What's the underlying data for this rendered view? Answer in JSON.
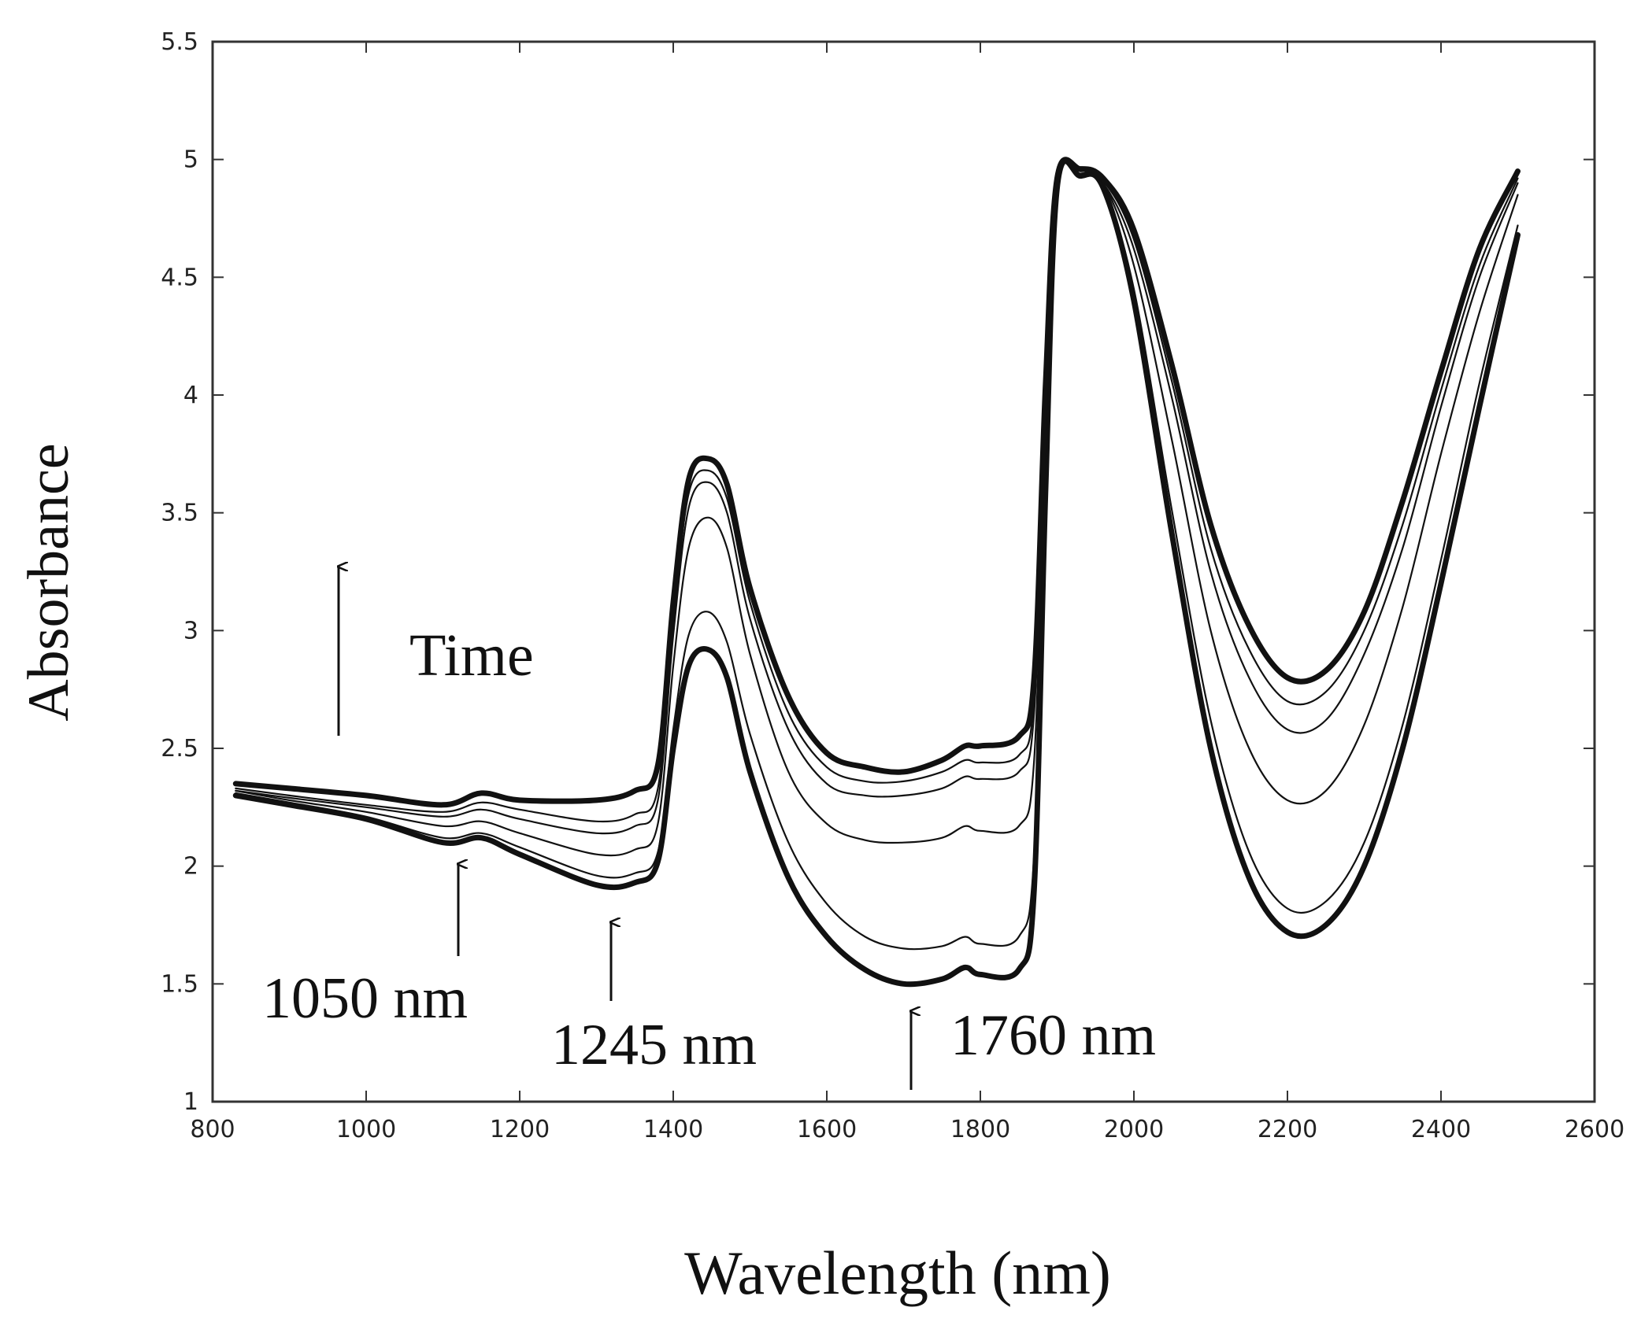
{
  "chart_data": {
    "type": "line",
    "title": "",
    "xlabel": "Wavelength (nm)",
    "ylabel": "Absorbance",
    "xlim": [
      800,
      2600
    ],
    "ylim": [
      1,
      5.5
    ],
    "xticks": [
      800,
      1000,
      1200,
      1400,
      1600,
      1800,
      2000,
      2200,
      2400,
      2600
    ],
    "xtick_labels": [
      "800",
      "1000",
      "1200",
      "1400",
      "1600",
      "1800",
      "2000",
      "2200",
      "2400",
      "2600"
    ],
    "yticks": [
      1,
      1.5,
      2,
      2.5,
      3,
      3.5,
      4,
      4.5,
      5,
      5.5
    ],
    "ytick_labels": [
      "1",
      "1.5",
      "2",
      "2.5",
      "3",
      "3.5",
      "4",
      "4.5",
      "5",
      "5.5"
    ],
    "grid": false,
    "x": [
      830,
      900,
      1000,
      1100,
      1150,
      1200,
      1300,
      1350,
      1380,
      1400,
      1420,
      1445,
      1470,
      1500,
      1550,
      1600,
      1650,
      1700,
      1750,
      1780,
      1800,
      1850,
      1870,
      1885,
      1900,
      1930,
      1960,
      2000,
      2050,
      2100,
      2150,
      2200,
      2250,
      2300,
      2350,
      2400,
      2450,
      2500
    ],
    "series": [
      {
        "name": "t0",
        "weight": "heavy",
        "values": [
          2.3,
          2.26,
          2.2,
          2.1,
          2.12,
          2.05,
          1.92,
          1.93,
          2.02,
          2.5,
          2.85,
          2.92,
          2.8,
          2.4,
          1.95,
          1.7,
          1.56,
          1.5,
          1.52,
          1.57,
          1.54,
          1.56,
          1.9,
          3.6,
          4.88,
          4.93,
          4.88,
          4.4,
          3.4,
          2.5,
          1.95,
          1.72,
          1.75,
          2.0,
          2.5,
          3.2,
          3.95,
          4.68
        ]
      },
      {
        "name": "t1",
        "weight": "light",
        "values": [
          2.31,
          2.27,
          2.21,
          2.12,
          2.14,
          2.08,
          1.96,
          1.97,
          2.06,
          2.58,
          2.98,
          3.08,
          2.95,
          2.56,
          2.1,
          1.84,
          1.7,
          1.65,
          1.66,
          1.7,
          1.67,
          1.7,
          2.05,
          3.7,
          4.88,
          4.93,
          4.88,
          4.45,
          3.5,
          2.62,
          2.06,
          1.82,
          1.85,
          2.1,
          2.6,
          3.3,
          4.05,
          4.72
        ]
      },
      {
        "name": "t2",
        "weight": "light",
        "values": [
          2.32,
          2.28,
          2.23,
          2.17,
          2.19,
          2.14,
          2.05,
          2.07,
          2.18,
          2.85,
          3.35,
          3.48,
          3.35,
          2.9,
          2.4,
          2.18,
          2.11,
          2.1,
          2.12,
          2.17,
          2.15,
          2.17,
          2.45,
          3.85,
          4.89,
          4.94,
          4.9,
          4.55,
          3.8,
          3.0,
          2.5,
          2.28,
          2.32,
          2.6,
          3.1,
          3.75,
          4.35,
          4.85
        ]
      },
      {
        "name": "t3",
        "weight": "light",
        "values": [
          2.32,
          2.29,
          2.25,
          2.21,
          2.24,
          2.2,
          2.14,
          2.17,
          2.28,
          2.98,
          3.52,
          3.63,
          3.5,
          3.05,
          2.58,
          2.35,
          2.3,
          2.3,
          2.33,
          2.38,
          2.37,
          2.4,
          2.65,
          3.95,
          4.9,
          4.94,
          4.9,
          4.62,
          3.98,
          3.25,
          2.8,
          2.58,
          2.62,
          2.9,
          3.35,
          3.95,
          4.5,
          4.9
        ]
      },
      {
        "name": "t4",
        "weight": "light",
        "values": [
          2.33,
          2.3,
          2.26,
          2.23,
          2.27,
          2.24,
          2.19,
          2.22,
          2.33,
          3.04,
          3.58,
          3.68,
          3.56,
          3.12,
          2.65,
          2.42,
          2.36,
          2.36,
          2.4,
          2.45,
          2.44,
          2.47,
          2.72,
          4.0,
          4.91,
          4.95,
          4.91,
          4.66,
          4.05,
          3.35,
          2.92,
          2.7,
          2.74,
          3.0,
          3.45,
          4.02,
          4.55,
          4.92
        ]
      },
      {
        "name": "t5",
        "weight": "heavy",
        "values": [
          2.35,
          2.33,
          2.3,
          2.26,
          2.31,
          2.28,
          2.28,
          2.32,
          2.43,
          3.12,
          3.64,
          3.73,
          3.62,
          3.18,
          2.72,
          2.48,
          2.42,
          2.4,
          2.45,
          2.51,
          2.51,
          2.55,
          2.8,
          4.05,
          4.92,
          4.96,
          4.92,
          4.7,
          4.12,
          3.45,
          3.02,
          2.8,
          2.83,
          3.08,
          3.55,
          4.1,
          4.62,
          4.95
        ]
      }
    ],
    "annotations": [
      {
        "text": "Time",
        "arrow": "up"
      },
      {
        "text": "1050 nm",
        "arrow": "up"
      },
      {
        "text": "1245 nm",
        "arrow": "up"
      },
      {
        "text": "1760 nm",
        "arrow": "up"
      }
    ]
  }
}
